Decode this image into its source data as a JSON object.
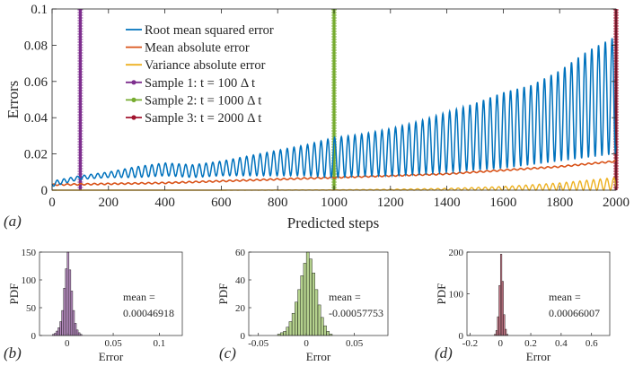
{
  "chart_data": [
    {
      "id": "main",
      "type": "line",
      "panel_label": "(a)",
      "xlabel": "Predicted steps",
      "ylabel": "Errors",
      "xlim": [
        0,
        2000
      ],
      "ylim": [
        0,
        0.1
      ],
      "xticks": [
        "0",
        "200",
        "400",
        "600",
        "800",
        "1000",
        "1200",
        "1400",
        "1600",
        "1800",
        "2000"
      ],
      "yticks": [
        "0",
        "0.02",
        "0.04",
        "0.06",
        "0.08",
        "0.1"
      ],
      "grid": false,
      "legend_position": "top-left",
      "colors": {
        "rmse": "#0072bd",
        "mae": "#d95319",
        "vae": "#edb120",
        "s1": "#7e2f8e",
        "s2": "#77ac30",
        "s3": "#a2142f"
      },
      "series": [
        {
          "key": "rmse",
          "name": "Root mean squared error",
          "oscillation_period": 24,
          "x": [
            0,
            100,
            200,
            300,
            400,
            500,
            600,
            700,
            800,
            900,
            1000,
            1100,
            1200,
            1300,
            1400,
            1500,
            1600,
            1700,
            1800,
            1900,
            2000
          ],
          "upper": [
            0.005,
            0.008,
            0.01,
            0.013,
            0.015,
            0.014,
            0.016,
            0.019,
            0.022,
            0.025,
            0.029,
            0.031,
            0.034,
            0.038,
            0.043,
            0.048,
            0.054,
            0.058,
            0.066,
            0.077,
            0.085
          ],
          "lower": [
            0.002,
            0.006,
            0.007,
            0.007,
            0.008,
            0.007,
            0.008,
            0.008,
            0.008,
            0.008,
            0.007,
            0.008,
            0.008,
            0.009,
            0.01,
            0.011,
            0.012,
            0.014,
            0.016,
            0.018,
            0.02
          ]
        },
        {
          "key": "mae",
          "name": "Mean absolute error",
          "x": [
            0,
            200,
            400,
            600,
            800,
            1000,
            1200,
            1400,
            1600,
            1800,
            2000
          ],
          "values": [
            0.003,
            0.0035,
            0.004,
            0.005,
            0.006,
            0.007,
            0.008,
            0.009,
            0.011,
            0.013,
            0.016
          ]
        },
        {
          "key": "vae",
          "name": "Variance absolute error",
          "x": [
            0,
            200,
            400,
            600,
            800,
            1000,
            1200,
            1400,
            1600,
            1800,
            2000
          ],
          "values": [
            0.0,
            0.0,
            0.0,
            0.0,
            0.0001,
            0.0002,
            0.0005,
            0.001,
            0.002,
            0.004,
            0.007
          ]
        },
        {
          "key": "s1",
          "name": "Sample 1: t = 100 Δ t",
          "x": 100,
          "marker": "vertical-line"
        },
        {
          "key": "s2",
          "name": "Sample 2: t = 1000 Δ t",
          "x": 1000,
          "marker": "vertical-line"
        },
        {
          "key": "s3",
          "name": "Sample 3: t = 2000 Δ t",
          "x": 2000,
          "marker": "vertical-line"
        }
      ]
    },
    {
      "id": "b",
      "type": "bar",
      "panel_label": "(b)",
      "xlabel": "Error",
      "ylabel": "PDF",
      "xlim": [
        -0.03,
        0.125
      ],
      "ylim": [
        0,
        150
      ],
      "xticks": [
        {
          "v": 0,
          "label": "0"
        },
        {
          "v": 0.05,
          "label": "0.05"
        },
        {
          "v": 0.1,
          "label": "0.1"
        }
      ],
      "yticks": [
        {
          "v": 0,
          "label": "0"
        },
        {
          "v": 50,
          "label": "50"
        },
        {
          "v": 100,
          "label": "100"
        },
        {
          "v": 150,
          "label": "150"
        }
      ],
      "color": "#7e2f8e",
      "annotation": [
        "mean =",
        "0.00046918"
      ],
      "bin_edges": [
        -0.016,
        -0.014,
        -0.012,
        -0.01,
        -0.008,
        -0.006,
        -0.004,
        -0.002,
        0,
        0.002,
        0.004,
        0.006,
        0.008,
        0.01,
        0.012,
        0.014,
        0.016
      ],
      "values": [
        2,
        4,
        8,
        14,
        25,
        45,
        85,
        120,
        150,
        118,
        80,
        45,
        22,
        10,
        5,
        2
      ]
    },
    {
      "id": "c",
      "type": "bar",
      "panel_label": "(c)",
      "xlabel": "Error",
      "ylabel": "PDF",
      "xlim": [
        -0.06,
        0.085
      ],
      "ylim": [
        0,
        60
      ],
      "xticks": [
        {
          "v": -0.05,
          "label": "-0.05"
        },
        {
          "v": 0,
          "label": "0"
        },
        {
          "v": 0.05,
          "label": "0.05"
        }
      ],
      "yticks": [
        {
          "v": 0,
          "label": "0"
        },
        {
          "v": 20,
          "label": "20"
        },
        {
          "v": 40,
          "label": "40"
        },
        {
          "v": 60,
          "label": "60"
        }
      ],
      "color": "#77ac30",
      "annotation": [
        "mean =",
        "-0.00057753"
      ],
      "bin_edges": [
        -0.03,
        -0.027,
        -0.024,
        -0.021,
        -0.018,
        -0.015,
        -0.012,
        -0.009,
        -0.006,
        -0.003,
        0,
        0.003,
        0.006,
        0.009,
        0.012,
        0.015,
        0.018,
        0.021,
        0.024,
        0.027
      ],
      "values": [
        1,
        2,
        3,
        6,
        10,
        16,
        24,
        33,
        43,
        52,
        60,
        55,
        45,
        33,
        22,
        13,
        7,
        3,
        1
      ]
    },
    {
      "id": "d",
      "type": "bar",
      "panel_label": "(d)",
      "xlabel": "Error",
      "ylabel": "PDF",
      "xlim": [
        -0.22,
        0.72
      ],
      "ylim": [
        0,
        200
      ],
      "xticks": [
        {
          "v": -0.2,
          "label": "-0.2"
        },
        {
          "v": 0,
          "label": "0"
        },
        {
          "v": 0.2,
          "label": "0.2"
        },
        {
          "v": 0.4,
          "label": "0.4"
        },
        {
          "v": 0.6,
          "label": "0.6"
        }
      ],
      "yticks": [
        {
          "v": 0,
          "label": "0"
        },
        {
          "v": 100,
          "label": "100"
        },
        {
          "v": 200,
          "label": "200"
        }
      ],
      "color": "#a2142f",
      "annotation": [
        "mean =",
        "0.00066007"
      ],
      "bin_edges": [
        -0.04,
        -0.03,
        -0.02,
        -0.01,
        0,
        0.01,
        0.02,
        0.03,
        0.04,
        0.05
      ],
      "values": [
        3,
        12,
        45,
        120,
        195,
        130,
        50,
        15,
        3
      ]
    }
  ]
}
